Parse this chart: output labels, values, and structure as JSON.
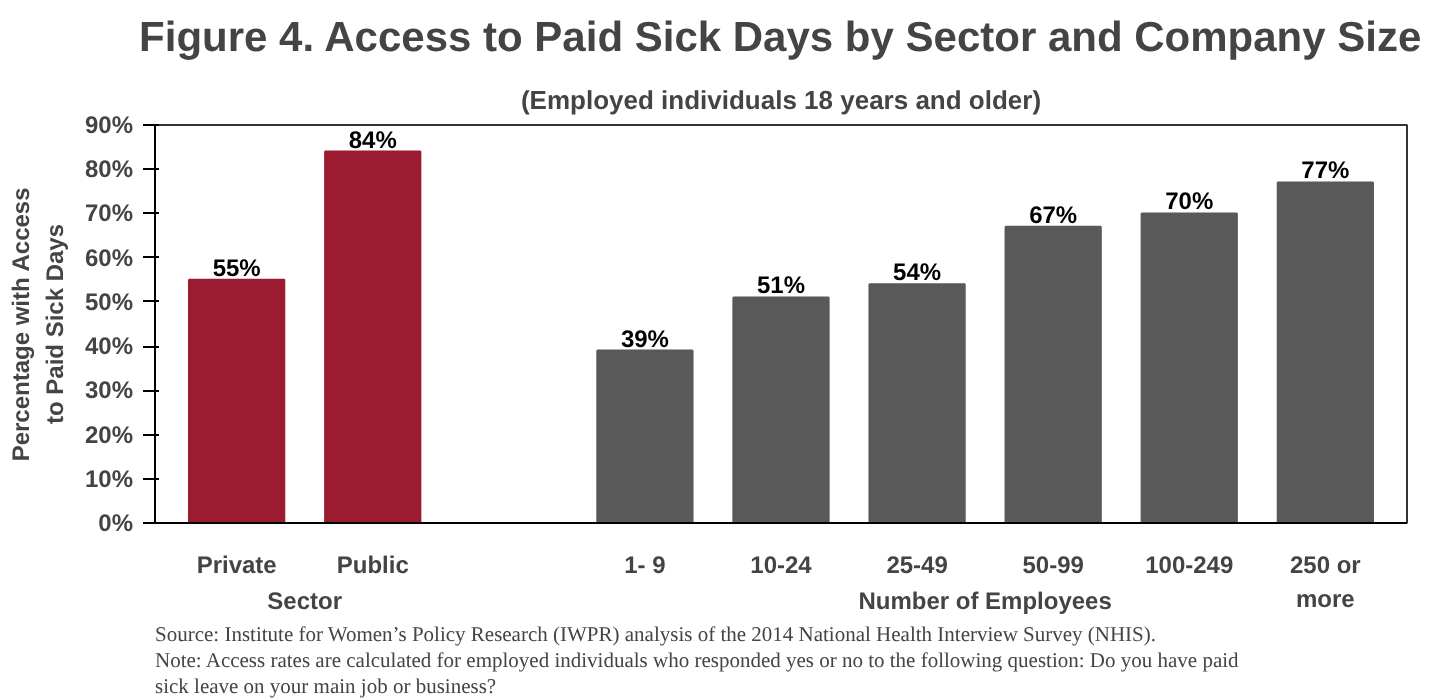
{
  "chart_data": {
    "type": "bar",
    "title": "Figure 4. Access to Paid Sick Days by Sector and Company Size",
    "subtitle": "(Employed individuals 18 years and older)",
    "ylabel": "Percentage with Access to Paid Sick Days",
    "categories": [
      "Private",
      "Public",
      null,
      "1- 9",
      "10-24",
      "25-49",
      "50-99",
      "100-249",
      "250 or more"
    ],
    "values": [
      55,
      84,
      null,
      39,
      51,
      54,
      67,
      70,
      77
    ],
    "colors": [
      "#9b1b30",
      "#9b1b30",
      "#595959",
      "#595959",
      "#595959",
      "#595959",
      "#595959",
      "#595959",
      "#595959"
    ],
    "value_labels": [
      "55%",
      "84%",
      null,
      "39%",
      "51%",
      "54%",
      "67%",
      "70%",
      "77%"
    ],
    "ylim": [
      0,
      90
    ],
    "yticks": [
      {
        "value": 0,
        "label": "0%"
      },
      {
        "value": 10,
        "label": "10%"
      },
      {
        "value": 20,
        "label": "20%"
      },
      {
        "value": 30,
        "label": "30%"
      },
      {
        "value": 40,
        "label": "40%"
      },
      {
        "value": 50,
        "label": "50%"
      },
      {
        "value": 60,
        "label": "60%"
      },
      {
        "value": 70,
        "label": "70%"
      },
      {
        "value": 80,
        "label": "80%"
      },
      {
        "value": 90,
        "label": "90%"
      }
    ],
    "grid": false,
    "annotations": [
      "Sector",
      "Number of Employees",
      "Source: Institute for Women’s Policy Research (IWPR) analysis of the 2014 National Health Interview Survey (NHIS).",
      "Note: Access rates are calculated for employed individuals who responded yes or no to the following question: Do you have paid sick leave on your main job or business?"
    ]
  }
}
